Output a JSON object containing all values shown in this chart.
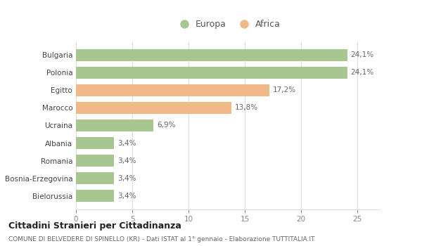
{
  "categories": [
    "Bielorussia",
    "Bosnia-Erzegovina",
    "Romania",
    "Albania",
    "Ucraina",
    "Marocco",
    "Egitto",
    "Polonia",
    "Bulgaria"
  ],
  "values": [
    3.4,
    3.4,
    3.4,
    3.4,
    6.9,
    13.8,
    17.2,
    24.1,
    24.1
  ],
  "labels": [
    "3,4%",
    "3,4%",
    "3,4%",
    "3,4%",
    "6,9%",
    "13,8%",
    "17,2%",
    "24,1%",
    "24,1%"
  ],
  "colors": [
    "#a8c68f",
    "#a8c68f",
    "#a8c68f",
    "#a8c68f",
    "#a8c68f",
    "#f0b989",
    "#f0b989",
    "#a8c68f",
    "#a8c68f"
  ],
  "legend_europa_color": "#a8c68f",
  "legend_africa_color": "#f0b989",
  "xlim": [
    0,
    27
  ],
  "xticks": [
    0,
    5,
    10,
    15,
    20,
    25
  ],
  "background_color": "#ffffff",
  "bar_height": 0.65,
  "title1": "Cittadini Stranieri per Cittadinanza",
  "title2": "COMUNE DI BELVEDERE DI SPINELLO (KR) - Dati ISTAT al 1° gennaio - Elaborazione TUTTITALIA.IT",
  "label_fontsize": 7.5,
  "tick_fontsize": 7.5,
  "grid_color": "#dddddd",
  "legend_marker_size": 10
}
